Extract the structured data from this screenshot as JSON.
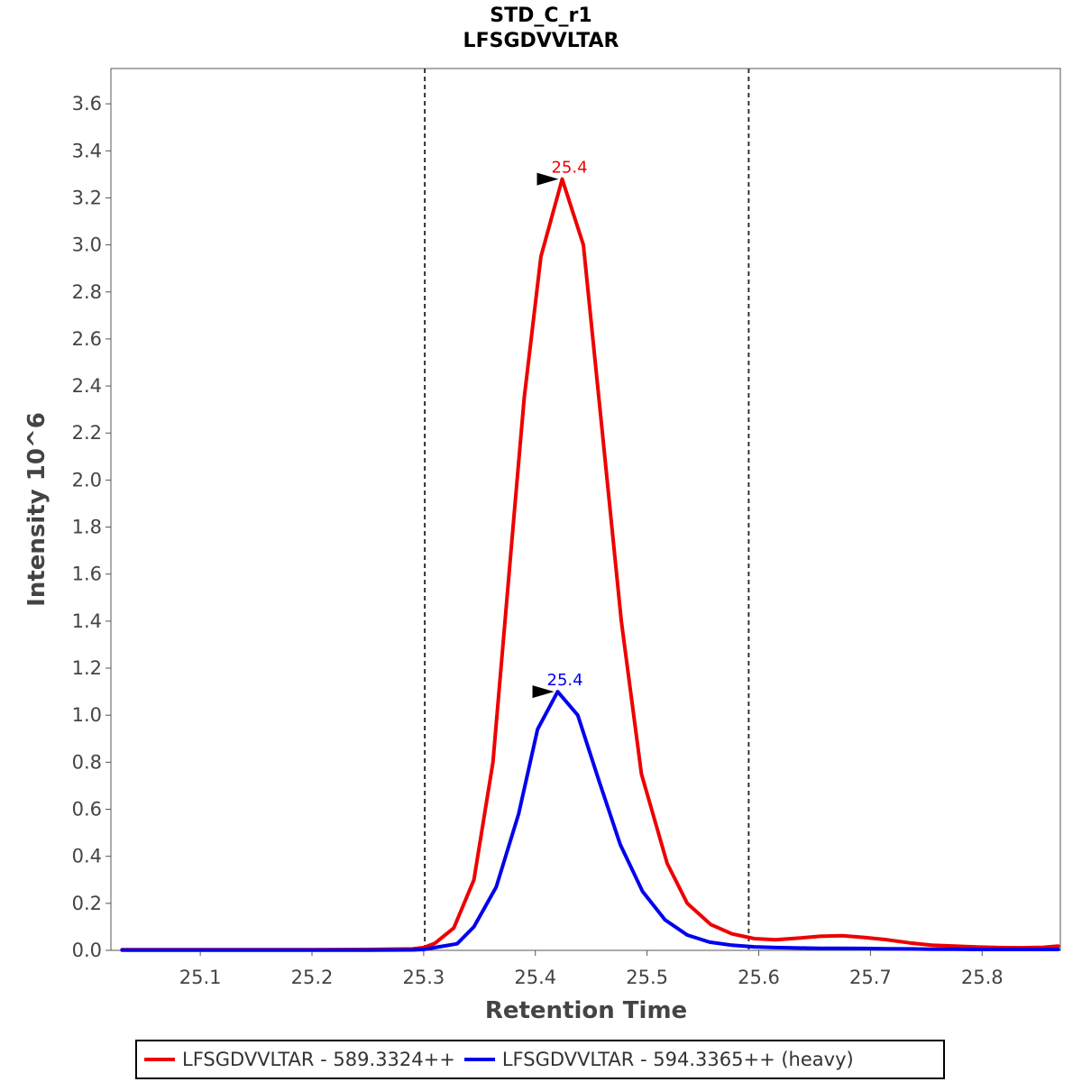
{
  "chart_data": {
    "type": "line",
    "title": "STD_C_r1",
    "subtitle": "LFSGDVVLTAR",
    "xlabel": "Retention Time",
    "ylabel": "Intensity 10^6",
    "xlim": [
      25.02,
      25.87
    ],
    "ylim": [
      0,
      3.75
    ],
    "xticks": [
      "25.1",
      "25.2",
      "25.3",
      "25.4",
      "25.5",
      "25.6",
      "25.7",
      "25.8"
    ],
    "yticks": [
      "0.0",
      "0.2",
      "0.4",
      "0.6",
      "0.8",
      "1.0",
      "1.2",
      "1.4",
      "1.6",
      "1.8",
      "2.0",
      "2.2",
      "2.4",
      "2.6",
      "2.8",
      "3.0",
      "3.2",
      "3.4",
      "3.6"
    ],
    "boundaries": [
      25.301,
      25.591
    ],
    "series": [
      {
        "name": "LFSGDVVLTAR - 589.3324++",
        "color": "#ee0000",
        "x": [
          25.03,
          25.1,
          25.2,
          25.25,
          25.29,
          25.3,
          25.31,
          25.327,
          25.345,
          25.362,
          25.38,
          25.39,
          25.405,
          25.424,
          25.443,
          25.46,
          25.477,
          25.495,
          25.518,
          25.536,
          25.557,
          25.576,
          25.596,
          25.615,
          25.636,
          25.655,
          25.675,
          25.695,
          25.715,
          25.735,
          25.755,
          25.775,
          25.795,
          25.815,
          25.835,
          25.855,
          25.868
        ],
        "y": [
          0.003,
          0.003,
          0.003,
          0.004,
          0.006,
          0.012,
          0.03,
          0.095,
          0.3,
          0.8,
          1.8,
          2.35,
          2.95,
          3.28,
          3.0,
          2.2,
          1.4,
          0.75,
          0.37,
          0.2,
          0.11,
          0.07,
          0.05,
          0.045,
          0.052,
          0.06,
          0.062,
          0.055,
          0.045,
          0.032,
          0.022,
          0.018,
          0.014,
          0.012,
          0.011,
          0.013,
          0.018
        ]
      },
      {
        "name": "LFSGDVVLTAR - 594.3365++ (heavy)",
        "color": "#0000ee",
        "x": [
          25.03,
          25.1,
          25.2,
          25.25,
          25.29,
          25.3,
          25.31,
          25.33,
          25.345,
          25.365,
          25.385,
          25.402,
          25.42,
          25.438,
          25.457,
          25.476,
          25.496,
          25.516,
          25.536,
          25.556,
          25.576,
          25.596,
          25.615,
          25.636,
          25.655,
          25.675,
          25.695,
          25.715,
          25.735,
          25.755,
          25.775,
          25.795,
          25.815,
          25.835,
          25.855,
          25.868
        ],
        "y": [
          0.001,
          0.001,
          0.001,
          0.001,
          0.002,
          0.004,
          0.012,
          0.028,
          0.1,
          0.27,
          0.58,
          0.94,
          1.1,
          1.0,
          0.72,
          0.45,
          0.25,
          0.13,
          0.065,
          0.035,
          0.022,
          0.015,
          0.012,
          0.01,
          0.009,
          0.009,
          0.008,
          0.007,
          0.006,
          0.005,
          0.005,
          0.004,
          0.004,
          0.004,
          0.004,
          0.004
        ]
      }
    ],
    "peak_labels": [
      {
        "series": 0,
        "x": 25.424,
        "y": 3.28,
        "label": "25.4"
      },
      {
        "series": 1,
        "x": 25.42,
        "y": 1.1,
        "label": "25.4"
      }
    ]
  },
  "legend": {
    "items": [
      {
        "label": "LFSGDVVLTAR - 589.3324++",
        "color": "#ee0000"
      },
      {
        "label": "LFSGDVVLTAR - 594.3365++ (heavy)",
        "color": "#0000ee"
      }
    ]
  }
}
